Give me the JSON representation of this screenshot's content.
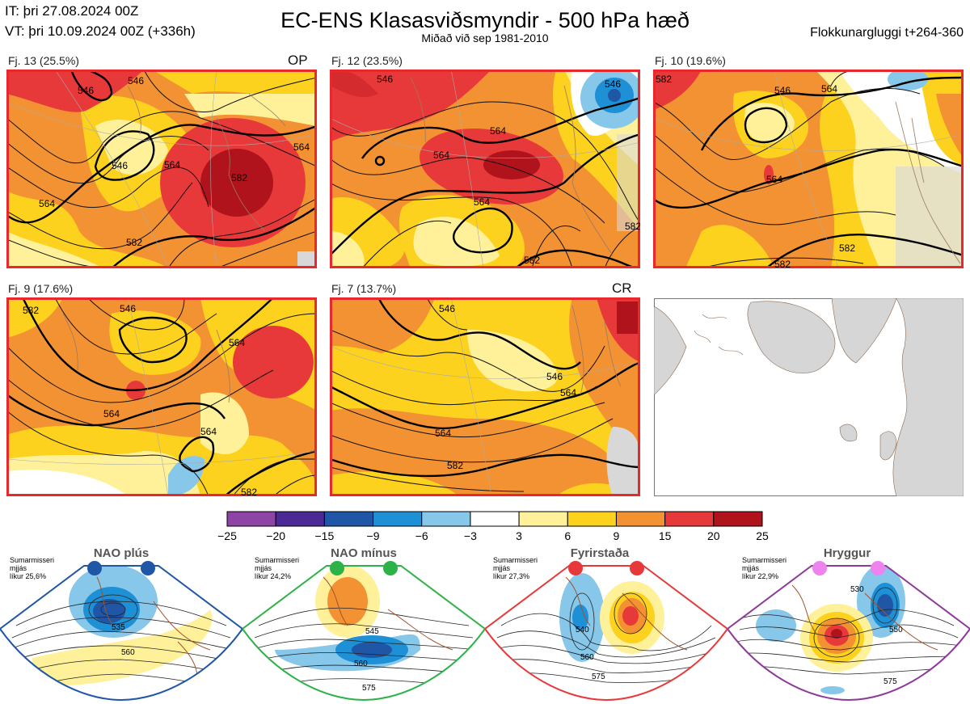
{
  "header": {
    "init_time": "IT: þri 27.08.2024 00Z",
    "valid_time": "VT: þri 10.09.2024 00Z  (+336h)",
    "title": "EC-ENS Klasasviðsmyndir - 500 hPa hæð",
    "subtitle": "Miðað við sep 1981-2010",
    "window": "Flokkunargluggi t+264-360"
  },
  "panels": [
    {
      "label": "Fj. 13 (25.5%)",
      "tag": "OP"
    },
    {
      "label": "Fj. 12 (23.5%)",
      "tag": ""
    },
    {
      "label": "Fj. 10 (19.6%)",
      "tag": ""
    },
    {
      "label": "Fj. 9 (17.6%)",
      "tag": ""
    },
    {
      "label": "Fj. 7 (13.7%)",
      "tag": "CR"
    }
  ],
  "contour_labels": {
    "p1": [
      "546",
      "546",
      "546",
      "564",
      "564",
      "582",
      "582",
      "564"
    ],
    "p2": [
      "546",
      "546",
      "564",
      "564",
      "564",
      "582",
      "582"
    ],
    "p3": [
      "546",
      "564",
      "564",
      "582",
      "582",
      "582"
    ],
    "p4": [
      "582",
      "546",
      "564",
      "564",
      "564",
      "582"
    ],
    "p5": [
      "546",
      "546",
      "564",
      "564",
      "582"
    ]
  },
  "colorbar": {
    "ticks": [
      "−25",
      "−20",
      "−15",
      "−9",
      "−6",
      "−3",
      "3",
      "6",
      "9",
      "15",
      "20",
      "25"
    ],
    "colors": [
      "#8e44a5",
      "#4b2a96",
      "#1f56a6",
      "#1e90d6",
      "#86c7ea",
      "#ffffff",
      "#fff199",
      "#fcd21f",
      "#f39233",
      "#e8393a",
      "#b0131b"
    ]
  },
  "regimes": [
    {
      "title": "NAO plús",
      "info": [
        "Sumarmisseri",
        "mjjás",
        "líkur 25,6%"
      ],
      "border": "#1f56a6",
      "dot": "#1f56a6",
      "labels": [
        "535",
        "560"
      ]
    },
    {
      "title": "NAO mínus",
      "info": [
        "Sumarmisseri",
        "mjjás",
        "líkur 24,2%"
      ],
      "border": "#2db24a",
      "dot": "#2db24a",
      "labels": [
        "545",
        "560",
        "575"
      ]
    },
    {
      "title": "Fyrirstaða",
      "info": [
        "Sumarmisseri",
        "mjjás",
        "líkur 27,3%"
      ],
      "border": "#e8393a",
      "dot": "#e8393a",
      "labels": [
        "540",
        "560",
        "575"
      ]
    },
    {
      "title": "Hryggur",
      "info": [
        "Sumarmisseri",
        "mjjás",
        "líkur 22,9%"
      ],
      "border": "#8e3a9a",
      "dot": "#ee82ee",
      "labels": [
        "530",
        "550",
        "575"
      ]
    }
  ]
}
